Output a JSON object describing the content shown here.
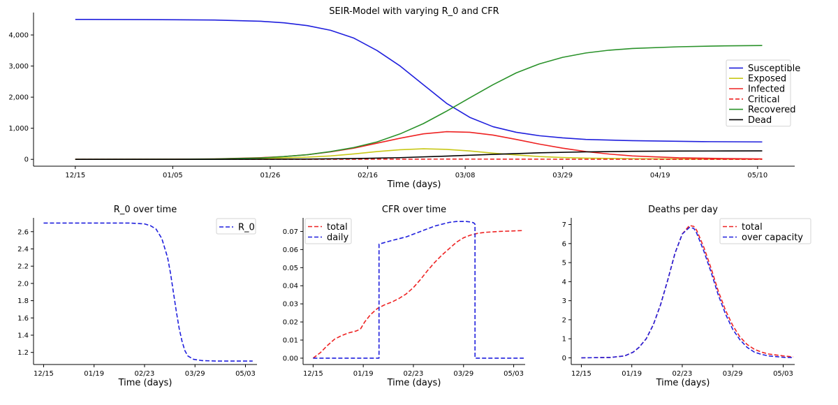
{
  "chart_data": [
    {
      "id": "main",
      "type": "line",
      "title": "SEIR-Model with varying R_0 and CFR",
      "xlabel": "Time (days)",
      "ylabel": "",
      "xlim": [
        -9,
        155
      ],
      "ylim": [
        -220,
        4720
      ],
      "xticks": [
        {
          "x": 0,
          "label": "12/15"
        },
        {
          "x": 21,
          "label": "01/05"
        },
        {
          "x": 42,
          "label": "01/26"
        },
        {
          "x": 63,
          "label": "02/16"
        },
        {
          "x": 84,
          "label": "03/08"
        },
        {
          "x": 105,
          "label": "03/29"
        },
        {
          "x": 126,
          "label": "04/19"
        },
        {
          "x": 147,
          "label": "05/10"
        }
      ],
      "yticks": [
        {
          "y": 0,
          "label": "0"
        },
        {
          "y": 1000,
          "label": "1,000"
        },
        {
          "y": 2000,
          "label": "2,000"
        },
        {
          "y": 3000,
          "label": "3,000"
        },
        {
          "y": 4000,
          "label": "4,000"
        }
      ],
      "legend_position": "center-right",
      "series": [
        {
          "name": "Susceptible",
          "color": "#1f1fdd",
          "dash": "solid",
          "x": [
            0,
            15,
            30,
            40,
            45,
            50,
            55,
            60,
            65,
            70,
            75,
            80,
            85,
            90,
            95,
            100,
            105,
            110,
            120,
            135,
            148
          ],
          "values": [
            4500,
            4495,
            4480,
            4440,
            4390,
            4300,
            4150,
            3900,
            3500,
            3000,
            2400,
            1800,
            1350,
            1050,
            870,
            760,
            690,
            640,
            600,
            570,
            560
          ]
        },
        {
          "name": "Exposed",
          "color": "#c8c818",
          "dash": "solid",
          "x": [
            0,
            20,
            30,
            40,
            50,
            55,
            60,
            65,
            70,
            75,
            80,
            85,
            90,
            95,
            100,
            105,
            110,
            120,
            135,
            148
          ],
          "values": [
            0,
            2,
            8,
            28,
            70,
            110,
            175,
            250,
            310,
            340,
            320,
            270,
            200,
            140,
            90,
            60,
            40,
            20,
            8,
            5
          ]
        },
        {
          "name": "Infected",
          "color": "#ee2222",
          "dash": "solid",
          "x": [
            0,
            20,
            30,
            40,
            45,
            50,
            55,
            60,
            65,
            70,
            75,
            80,
            85,
            90,
            95,
            100,
            105,
            110,
            115,
            120,
            130,
            140,
            148
          ],
          "values": [
            0,
            3,
            15,
            55,
            90,
            150,
            240,
            360,
            520,
            680,
            820,
            890,
            870,
            780,
            640,
            490,
            360,
            250,
            170,
            110,
            50,
            25,
            15
          ]
        },
        {
          "name": "Critical",
          "color": "#ee2222",
          "dash": "dashed",
          "x": [
            0,
            40,
            60,
            70,
            80,
            90,
            100,
            110,
            130,
            148
          ],
          "values": [
            0,
            1,
            4,
            6,
            8,
            7,
            5,
            3,
            1,
            0
          ]
        },
        {
          "name": "Recovered",
          "color": "#2a922a",
          "dash": "solid",
          "x": [
            0,
            20,
            30,
            40,
            45,
            50,
            55,
            60,
            65,
            70,
            75,
            80,
            85,
            90,
            95,
            100,
            105,
            110,
            115,
            120,
            130,
            140,
            148
          ],
          "values": [
            0,
            2,
            12,
            45,
            90,
            150,
            250,
            380,
            560,
            820,
            1150,
            1550,
            1980,
            2400,
            2780,
            3070,
            3280,
            3420,
            3510,
            3565,
            3620,
            3650,
            3660
          ]
        },
        {
          "name": "Dead",
          "color": "#000000",
          "dash": "solid",
          "x": [
            0,
            30,
            40,
            50,
            60,
            70,
            80,
            90,
            100,
            110,
            120,
            130,
            140,
            148
          ],
          "values": [
            0,
            1,
            3,
            8,
            25,
            55,
            105,
            160,
            210,
            240,
            258,
            266,
            270,
            272
          ]
        }
      ]
    },
    {
      "id": "r0",
      "type": "line",
      "title": "R_0 over time",
      "xlabel": "Time (days)",
      "ylabel": "",
      "xlim": [
        -7,
        148
      ],
      "ylim": [
        1.06,
        2.76
      ],
      "xticks": [
        {
          "x": 0,
          "label": "12/15"
        },
        {
          "x": 35,
          "label": "01/19"
        },
        {
          "x": 70,
          "label": "02/23"
        },
        {
          "x": 105,
          "label": "03/29"
        },
        {
          "x": 140,
          "label": "05/03"
        }
      ],
      "yticks": [
        {
          "y": 1.2,
          "label": "1.2"
        },
        {
          "y": 1.4,
          "label": "1.4"
        },
        {
          "y": 1.6,
          "label": "1.6"
        },
        {
          "y": 1.8,
          "label": "1.8"
        },
        {
          "y": 2.0,
          "label": "2.0"
        },
        {
          "y": 2.2,
          "label": "2.2"
        },
        {
          "y": 2.4,
          "label": "2.4"
        },
        {
          "y": 2.6,
          "label": "2.6"
        }
      ],
      "legend_position": "top-right",
      "series": [
        {
          "name": "R_0",
          "color": "#1f1fdd",
          "dash": "dashed",
          "x": [
            0,
            40,
            60,
            70,
            74,
            78,
            82,
            86,
            88,
            90,
            92,
            94,
            96,
            98,
            100,
            104,
            110,
            120,
            130,
            140,
            145
          ],
          "values": [
            2.7,
            2.7,
            2.7,
            2.69,
            2.67,
            2.63,
            2.52,
            2.3,
            2.12,
            1.9,
            1.68,
            1.48,
            1.33,
            1.22,
            1.16,
            1.12,
            1.105,
            1.1,
            1.1,
            1.1,
            1.1
          ]
        }
      ]
    },
    {
      "id": "cfr",
      "type": "line",
      "title": "CFR over time",
      "xlabel": "Time (days)",
      "ylabel": "",
      "xlim": [
        -7,
        148
      ],
      "ylim": [
        -0.0035,
        0.0775
      ],
      "xticks": [
        {
          "x": 0,
          "label": "12/15"
        },
        {
          "x": 35,
          "label": "01/19"
        },
        {
          "x": 70,
          "label": "02/23"
        },
        {
          "x": 105,
          "label": "03/29"
        },
        {
          "x": 140,
          "label": "05/03"
        }
      ],
      "yticks": [
        {
          "y": 0.0,
          "label": "0.00"
        },
        {
          "y": 0.01,
          "label": "0.01"
        },
        {
          "y": 0.02,
          "label": "0.02"
        },
        {
          "y": 0.03,
          "label": "0.03"
        },
        {
          "y": 0.04,
          "label": "0.04"
        },
        {
          "y": 0.05,
          "label": "0.05"
        },
        {
          "y": 0.06,
          "label": "0.06"
        },
        {
          "y": 0.07,
          "label": "0.07"
        }
      ],
      "legend_position": "top-left",
      "series": [
        {
          "name": "total",
          "color": "#ee2222",
          "dash": "dashed",
          "x": [
            0,
            5,
            10,
            15,
            20,
            25,
            30,
            33,
            36,
            40,
            45,
            50,
            55,
            60,
            65,
            70,
            75,
            80,
            85,
            90,
            95,
            100,
            105,
            110,
            115,
            120,
            130,
            140,
            147
          ],
          "values": [
            0,
            0.003,
            0.007,
            0.0105,
            0.0125,
            0.014,
            0.015,
            0.016,
            0.02,
            0.024,
            0.0275,
            0.0295,
            0.031,
            0.033,
            0.0355,
            0.039,
            0.0435,
            0.0485,
            0.053,
            0.057,
            0.0605,
            0.064,
            0.0665,
            0.068,
            0.069,
            0.0695,
            0.07,
            0.0703,
            0.0705
          ]
        },
        {
          "name": "daily",
          "color": "#1f1fdd",
          "dash": "dashed",
          "x": [
            0,
            46,
            46.01,
            55,
            65,
            75,
            85,
            95,
            100,
            107,
            110,
            112,
            113,
            113.01,
            130,
            147
          ],
          "values": [
            0,
            0,
            0.063,
            0.065,
            0.067,
            0.07,
            0.073,
            0.075,
            0.0755,
            0.0755,
            0.0752,
            0.0748,
            0.074,
            0,
            0,
            0
          ]
        }
      ]
    },
    {
      "id": "deaths",
      "type": "line",
      "title": "Deaths per day",
      "xlabel": "Time (days)",
      "ylabel": "",
      "xlim": [
        -7,
        148
      ],
      "ylim": [
        -0.35,
        7.35
      ],
      "xticks": [
        {
          "x": 0,
          "label": "12/15"
        },
        {
          "x": 35,
          "label": "01/19"
        },
        {
          "x": 70,
          "label": "02/23"
        },
        {
          "x": 105,
          "label": "03/29"
        },
        {
          "x": 140,
          "label": "05/03"
        }
      ],
      "yticks": [
        {
          "y": 0,
          "label": "0"
        },
        {
          "y": 1,
          "label": "1"
        },
        {
          "y": 2,
          "label": "2"
        },
        {
          "y": 3,
          "label": "3"
        },
        {
          "y": 4,
          "label": "4"
        },
        {
          "y": 5,
          "label": "5"
        },
        {
          "y": 6,
          "label": "6"
        },
        {
          "y": 7,
          "label": "7"
        }
      ],
      "legend_position": "top-right",
      "series": [
        {
          "name": "total",
          "color": "#ee2222",
          "dash": "dashed",
          "x": [
            0,
            20,
            30,
            36,
            40,
            45,
            50,
            55,
            60,
            65,
            70,
            75,
            78,
            80,
            85,
            90,
            95,
            100,
            105,
            110,
            115,
            120,
            125,
            130,
            140,
            147
          ],
          "values": [
            0,
            0.02,
            0.1,
            0.3,
            0.55,
            1.0,
            1.75,
            2.8,
            4.1,
            5.5,
            6.5,
            6.95,
            6.9,
            6.7,
            5.8,
            4.7,
            3.5,
            2.5,
            1.7,
            1.1,
            0.7,
            0.45,
            0.3,
            0.2,
            0.1,
            0.05
          ]
        },
        {
          "name": "over capacity",
          "color": "#1f1fdd",
          "dash": "dashed",
          "x": [
            0,
            20,
            30,
            36,
            40,
            45,
            50,
            55,
            60,
            65,
            70,
            75,
            78,
            80,
            85,
            90,
            95,
            100,
            105,
            110,
            115,
            120,
            125,
            130,
            140,
            147
          ],
          "values": [
            0,
            0.02,
            0.1,
            0.3,
            0.55,
            1.0,
            1.75,
            2.8,
            4.1,
            5.5,
            6.5,
            6.85,
            6.8,
            6.55,
            5.6,
            4.5,
            3.3,
            2.3,
            1.5,
            0.95,
            0.55,
            0.3,
            0.18,
            0.1,
            0.03,
            0.01
          ]
        }
      ]
    }
  ]
}
